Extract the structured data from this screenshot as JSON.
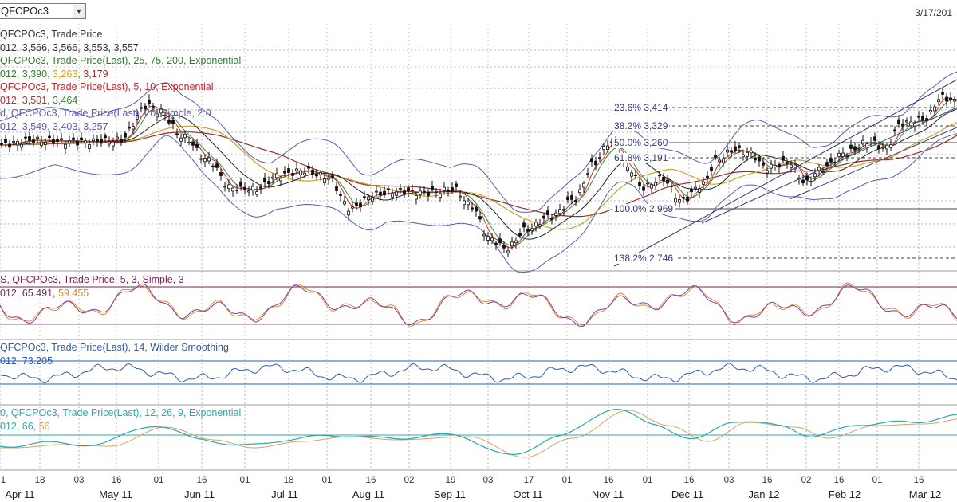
{
  "toolbar": {
    "symbol_value": "QFCPOc3",
    "selected_date": "3/17/201"
  },
  "colors": {
    "grid": "#b8b8b8",
    "candle": "#111111",
    "bollinger": "#5b5bb0",
    "ema_long": "#9a2c2c",
    "ema_mid": "#c9a227",
    "ema_short": "#2e8b2e",
    "ema_red": "#d22b2b",
    "slow_k": "#7d1f5a",
    "stoch_d": "#e08a2a",
    "stoch_k": "#7a3fa0",
    "rsi": "#2a5db0",
    "macd": "#2aa7b0",
    "macd_signal": "#e0a060"
  },
  "legends": {
    "main": [
      {
        "parts": [
          {
            "text": "QFCPOc3, Trade Price",
            "color": "#333333"
          }
        ]
      },
      {
        "parts": [
          {
            "text": "012, 3,566, 3,566, 3,553, 3,557",
            "color": "#333333"
          }
        ]
      },
      {
        "parts": [
          {
            "text": "QFCPOc3, Trade Price(Last),  25, 75, 200, Exponential",
            "color": "#2e7d2e"
          }
        ]
      },
      {
        "parts": [
          {
            "text": "012, 3,390, ",
            "color": "#2e7d2e"
          },
          {
            "text": "3,263",
            "color": "#c9a227"
          },
          {
            "text": ", ",
            "color": "#2e7d2e"
          },
          {
            "text": "3,179",
            "color": "#9a2c2c"
          }
        ]
      },
      {
        "parts": [
          {
            "text": "QFCPOc3, Trade Price(Last),  5, 10, Exponential",
            "color": "#c0282d"
          }
        ]
      },
      {
        "parts": [
          {
            "text": "012, 3,501, ",
            "color": "#c0282d"
          },
          {
            "text": "3,464",
            "color": "#2e8b2e"
          }
        ]
      },
      {
        "parts": [
          {
            "text": "d, QFCPOc3, Trade Price(Last),  20, Simple, 2.0",
            "color": "#5b5bb0"
          }
        ]
      },
      {
        "parts": [
          {
            "text": "012, 3,549, 3,403, 3,257",
            "color": "#5b5bb0"
          }
        ]
      }
    ],
    "stoch": [
      {
        "parts": [
          {
            "text": "S, QFCPOc3, Trade Price,  5, 3, Simple, 3",
            "color": "#7d1f5a"
          }
        ]
      },
      {
        "parts": [
          {
            "text": "012, 65.491, ",
            "color": "#7d1f5a"
          },
          {
            "text": "59.455",
            "color": "#e08a2a"
          }
        ]
      }
    ],
    "rsi": [
      {
        "parts": [
          {
            "text": "QFCPOc3, Trade Price(Last),  14, Wilder Smoothing",
            "color": "#2a5db0"
          }
        ]
      },
      {
        "parts": [
          {
            "text": "012, 73.205",
            "color": "#2a5db0"
          }
        ]
      }
    ],
    "macd": [
      {
        "parts": [
          {
            "text": "0, QFCPOc3, Trade Price(Last),  12, 26, 9, Exponential",
            "color": "#2aa7b0"
          }
        ]
      },
      {
        "parts": [
          {
            "text": "012, 66, ",
            "color": "#2aa7b0"
          },
          {
            "text": "56",
            "color": "#e0a060"
          }
        ]
      }
    ]
  },
  "chart_data": {
    "type": "line",
    "title": "QFCPOc3, Trade Price",
    "x_ticks": [
      "1",
      "18",
      "03",
      "16",
      "01",
      "16",
      "01",
      "18",
      "01",
      "16",
      "02",
      "19",
      "03",
      "17",
      "01",
      "16",
      "01",
      "16",
      "03",
      "16",
      "02",
      "16",
      "01",
      "16"
    ],
    "months": [
      "Apr 11",
      "May 11",
      "Jun 11",
      "Jul 11",
      "Aug 11",
      "Sep 11",
      "Oct 11",
      "Nov 11",
      "Dec 11",
      "Jan 12",
      "Feb 12",
      "Mar 12"
    ],
    "price_approx": {
      "x": [
        "Apr 11",
        "May 11",
        "Jun 11",
        "Jul 11",
        "Aug 11",
        "Sep 11",
        "Oct 11",
        "Nov 11",
        "Dec 11",
        "Jan 12",
        "Feb 12",
        "Mar 12"
      ],
      "y": [
        3430,
        3460,
        3360,
        3200,
        3150,
        3150,
        2820,
        3300,
        3100,
        3200,
        3300,
        3557
      ]
    },
    "fibonacci": [
      {
        "label": "23.6%",
        "value": "3,414"
      },
      {
        "label": "38.2%",
        "value": "3,329"
      },
      {
        "label": "50.0%",
        "value": "3,260"
      },
      {
        "label": "61.8%",
        "value": "3,191"
      },
      {
        "label": "100.0%",
        "value": "2,969"
      },
      {
        "label": "138.2%",
        "value": "2,746"
      }
    ],
    "last_values": {
      "close": "3,557",
      "ema25": "3,390",
      "ema75": "3,263",
      "ema200": "3,179",
      "ema5": "3,501",
      "ema10": "3,464",
      "bb_upper": "3,549",
      "bb_mid": "3,403",
      "bb_lower": "3,257",
      "stoch_k": "65.491",
      "stoch_d": "59.455",
      "rsi": "73.205",
      "macd": "66",
      "macd_signal": "56"
    },
    "grid": true
  }
}
